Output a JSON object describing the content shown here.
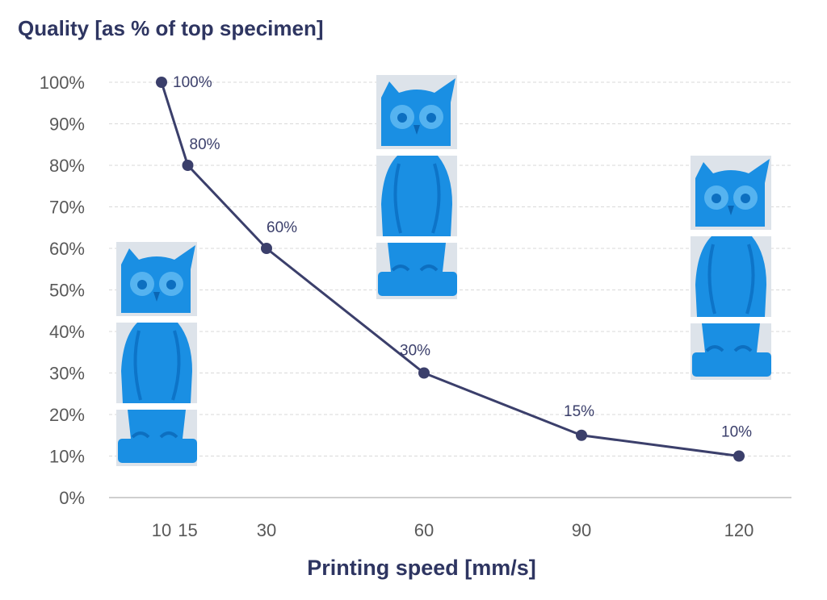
{
  "chart_data": {
    "type": "line",
    "ylabel": "Quality [as % of top specimen]",
    "xlabel": "Printing speed [mm/s]",
    "x": [
      10,
      15,
      30,
      60,
      90,
      120
    ],
    "xticks": [
      "10",
      "15",
      "30",
      "60",
      "90",
      "120"
    ],
    "y": [
      100,
      80,
      60,
      30,
      15,
      10
    ],
    "data_labels": [
      "100%",
      "80%",
      "60%",
      "30%",
      "15%",
      "10%"
    ],
    "yticks": [
      "0%",
      "10%",
      "20%",
      "30%",
      "40%",
      "50%",
      "60%",
      "70%",
      "80%",
      "90%",
      "100%"
    ],
    "ylim": [
      0,
      100
    ],
    "xlim": [
      0,
      130
    ],
    "grid": true,
    "legend": "none",
    "colors": {
      "line": "#3b3f6b",
      "axis_text": "#595959",
      "title": "#2e3561",
      "grid": "#d9d9d9",
      "specimen": "#1a8fe3"
    }
  },
  "specimen_images": [
    {
      "name": "owl-specimen-10",
      "speed": 10,
      "label": "owl specimen at 10 mm/s"
    },
    {
      "name": "owl-specimen-60",
      "speed": 60,
      "label": "owl specimen at 60 mm/s"
    },
    {
      "name": "owl-specimen-120",
      "speed": 120,
      "label": "owl specimen at 120 mm/s"
    }
  ]
}
